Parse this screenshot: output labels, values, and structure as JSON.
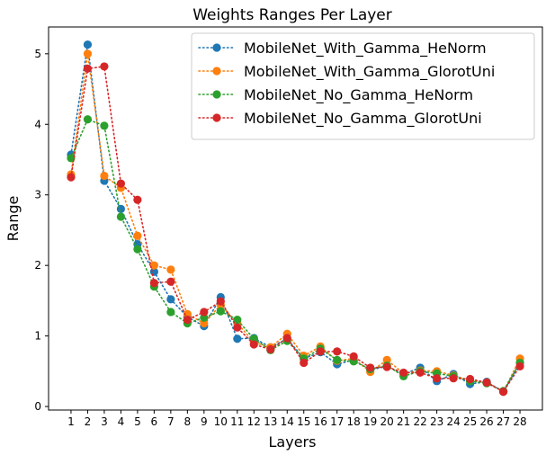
{
  "chart_data": {
    "type": "line",
    "title": "Weights Ranges Per Layer",
    "xlabel": "Layers",
    "ylabel": "Range",
    "x": [
      1,
      2,
      3,
      4,
      5,
      6,
      7,
      8,
      9,
      10,
      11,
      12,
      13,
      14,
      15,
      16,
      17,
      18,
      19,
      20,
      21,
      22,
      23,
      24,
      25,
      26,
      27,
      28
    ],
    "xtick_labels": [
      "1",
      "2",
      "3",
      "4",
      "5",
      "6",
      "7",
      "8",
      "9",
      "10",
      "11",
      "12",
      "13",
      "14",
      "15",
      "16",
      "17",
      "18",
      "19",
      "20",
      "21",
      "22",
      "23",
      "24",
      "25",
      "26",
      "27",
      "28"
    ],
    "yticks": [
      0,
      1,
      2,
      3,
      4,
      5
    ],
    "ytick_labels": [
      "0",
      "1",
      "2",
      "3",
      "4",
      "5"
    ],
    "xlim": [
      -0.35,
      29.35
    ],
    "ylim": [
      -0.05,
      5.38
    ],
    "grid": false,
    "legend_position": "top-right",
    "line_style": "dotted",
    "marker": "circle",
    "series": [
      {
        "name": "MobileNet_With_Gamma_HeNorm",
        "color": "#1f77b4",
        "values": [
          3.57,
          5.13,
          3.2,
          2.8,
          2.3,
          1.91,
          1.52,
          1.27,
          1.14,
          1.55,
          0.96,
          0.97,
          0.84,
          0.96,
          0.68,
          0.77,
          0.6,
          0.66,
          0.52,
          0.57,
          0.46,
          0.55,
          0.36,
          0.46,
          0.32,
          0.35,
          0.21,
          0.62
        ]
      },
      {
        "name": "MobileNet_With_Gamma_GlorotUni",
        "color": "#ff7f0e",
        "values": [
          3.29,
          5.0,
          3.27,
          3.1,
          2.42,
          2.0,
          1.94,
          1.31,
          1.18,
          1.44,
          1.18,
          0.91,
          0.84,
          1.03,
          0.72,
          0.85,
          0.65,
          0.68,
          0.49,
          0.66,
          0.47,
          0.51,
          0.5,
          0.44,
          0.37,
          0.34,
          0.21,
          0.68
        ]
      },
      {
        "name": "MobileNet_No_Gamma_HeNorm",
        "color": "#2ca02c",
        "values": [
          3.52,
          4.07,
          3.98,
          2.69,
          2.23,
          1.7,
          1.34,
          1.18,
          1.26,
          1.35,
          1.23,
          0.96,
          0.8,
          0.93,
          0.68,
          0.82,
          0.66,
          0.64,
          0.53,
          0.58,
          0.43,
          0.5,
          0.47,
          0.43,
          0.36,
          0.33,
          0.22,
          0.62
        ]
      },
      {
        "name": "MobileNet_No_Gamma_GlorotUni",
        "color": "#d62728",
        "values": [
          3.25,
          4.79,
          4.82,
          3.16,
          2.93,
          1.75,
          1.77,
          1.23,
          1.34,
          1.49,
          1.12,
          0.88,
          0.81,
          0.97,
          0.62,
          0.78,
          0.78,
          0.71,
          0.55,
          0.56,
          0.48,
          0.48,
          0.4,
          0.4,
          0.39,
          0.34,
          0.21,
          0.57
        ]
      }
    ]
  }
}
